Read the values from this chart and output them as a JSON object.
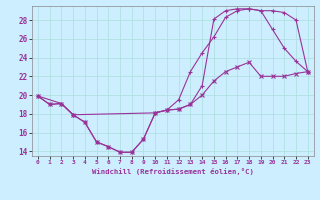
{
  "xlabel": "Windchill (Refroidissement éolien,°C)",
  "bg_color": "#cceeff",
  "line_color": "#993399",
  "grid_color": "#aadddd",
  "xlim": [
    -0.5,
    23.5
  ],
  "ylim": [
    13.5,
    29.5
  ],
  "yticks": [
    14,
    16,
    18,
    20,
    22,
    24,
    26,
    28
  ],
  "xticks": [
    0,
    1,
    2,
    3,
    4,
    5,
    6,
    7,
    8,
    9,
    10,
    11,
    12,
    13,
    14,
    15,
    16,
    17,
    18,
    19,
    20,
    21,
    22,
    23
  ],
  "line1_x": [
    0,
    1,
    2,
    3,
    4,
    5,
    6,
    7,
    8,
    9,
    10,
    11,
    12,
    13,
    14,
    15,
    16,
    17,
    18,
    19,
    20,
    21,
    22,
    23
  ],
  "line1_y": [
    19.9,
    19.0,
    19.1,
    17.9,
    17.1,
    15.0,
    14.5,
    13.9,
    13.9,
    15.3,
    18.1,
    18.4,
    18.5,
    19.0,
    21.0,
    28.1,
    29.0,
    29.2,
    29.2,
    29.0,
    29.0,
    28.8,
    28.0,
    22.5
  ],
  "line2_x": [
    0,
    2,
    3,
    10,
    11,
    12,
    13,
    14,
    15,
    16,
    17,
    18,
    19,
    20,
    21,
    22,
    23
  ],
  "line2_y": [
    19.9,
    19.1,
    17.9,
    18.1,
    18.4,
    19.5,
    22.5,
    24.5,
    26.2,
    28.3,
    29.0,
    29.2,
    29.0,
    27.0,
    25.0,
    23.6,
    22.5
  ],
  "line3_x": [
    0,
    1,
    2,
    3,
    4,
    5,
    6,
    7,
    8,
    9,
    10,
    11,
    12,
    13,
    14,
    15,
    16,
    17,
    18,
    19,
    20,
    21,
    22,
    23
  ],
  "line3_y": [
    19.9,
    19.0,
    19.1,
    17.9,
    17.1,
    15.0,
    14.5,
    13.9,
    13.9,
    15.3,
    18.1,
    18.4,
    18.5,
    19.0,
    20.0,
    21.5,
    22.5,
    23.0,
    23.5,
    22.0,
    22.0,
    22.0,
    22.3,
    22.5
  ]
}
